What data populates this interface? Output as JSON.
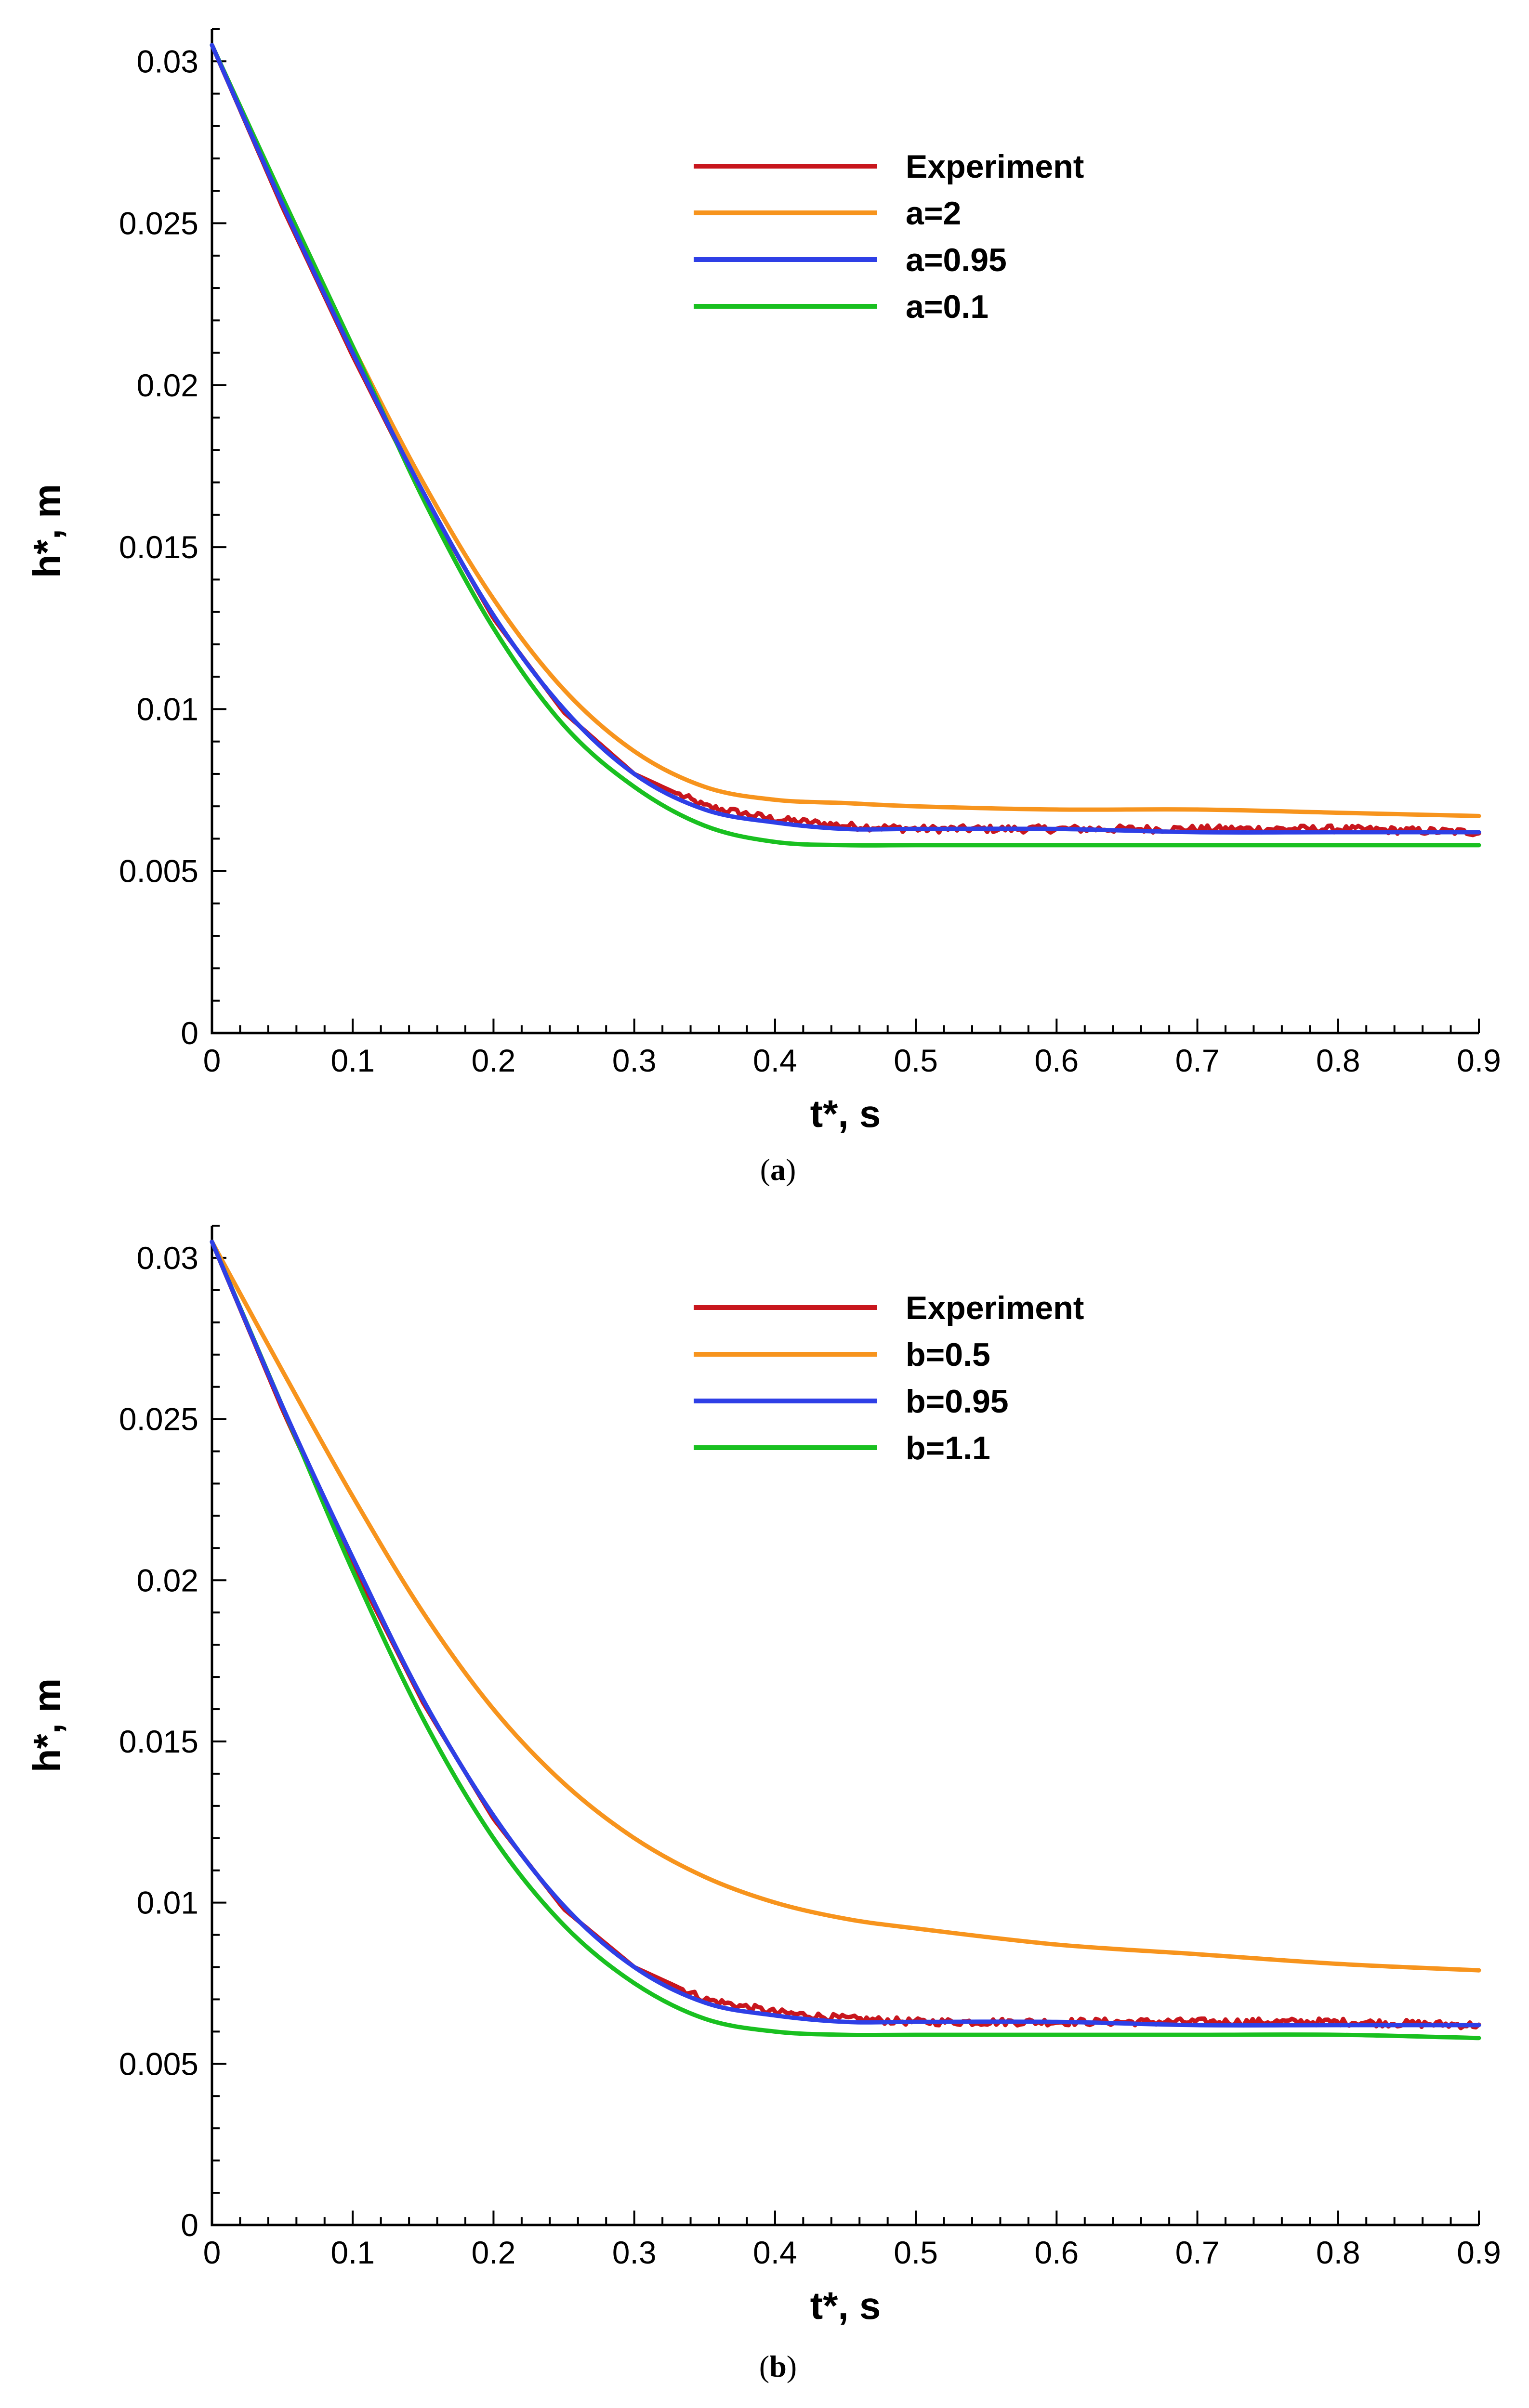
{
  "chart_data": [
    {
      "panel": "a",
      "caption_letter": "a",
      "type": "line",
      "xlabel": "t*, s",
      "ylabel": "h*, m",
      "xlim": [
        0,
        0.9
      ],
      "ylim": [
        0,
        0.031
      ],
      "xticks": [
        0,
        0.1,
        0.2,
        0.3,
        0.4,
        0.5,
        0.6,
        0.7,
        0.8,
        0.9
      ],
      "xtick_labels": [
        "0",
        "0.1",
        "0.2",
        "0.3",
        "0.4",
        "0.5",
        "0.6",
        "0.7",
        "0.8",
        "0.9"
      ],
      "yticks": [
        0,
        0.005,
        0.01,
        0.015,
        0.02,
        0.025,
        0.03
      ],
      "ytick_labels": [
        "0",
        "0.005",
        "0.01",
        "0.015",
        "0.02",
        "0.025",
        "0.03"
      ],
      "legend_position": "top-center",
      "series": [
        {
          "name": "Experiment",
          "color": "#c8161d",
          "noisy": true,
          "x": [
            0,
            0.05,
            0.1,
            0.15,
            0.2,
            0.25,
            0.3,
            0.35,
            0.4,
            0.45,
            0.5,
            0.6,
            0.7,
            0.8,
            0.9
          ],
          "y": [
            0.0305,
            0.0255,
            0.0209,
            0.0166,
            0.0128,
            0.0099,
            0.008,
            0.007,
            0.0066,
            0.0064,
            0.0063,
            0.0063,
            0.0063,
            0.0063,
            0.0062
          ]
        },
        {
          "name": "a=2",
          "color": "#f7941d",
          "x": [
            0,
            0.05,
            0.1,
            0.15,
            0.2,
            0.25,
            0.3,
            0.35,
            0.4,
            0.45,
            0.5,
            0.6,
            0.7,
            0.8,
            0.9
          ],
          "y": [
            0.0305,
            0.0257,
            0.0212,
            0.017,
            0.0134,
            0.0106,
            0.0087,
            0.0076,
            0.0072,
            0.0071,
            0.007,
            0.0069,
            0.0069,
            0.0068,
            0.0067
          ]
        },
        {
          "name": "a=0.95",
          "color": "#2e3fe6",
          "x": [
            0,
            0.05,
            0.1,
            0.15,
            0.2,
            0.25,
            0.3,
            0.35,
            0.4,
            0.45,
            0.5,
            0.6,
            0.7,
            0.8,
            0.9
          ],
          "y": [
            0.0305,
            0.0256,
            0.021,
            0.0167,
            0.0129,
            0.01,
            0.008,
            0.0069,
            0.0065,
            0.0063,
            0.0063,
            0.0063,
            0.0062,
            0.0062,
            0.0062
          ]
        },
        {
          "name": "a=0.1",
          "color": "#19c020",
          "x": [
            0,
            0.05,
            0.1,
            0.15,
            0.2,
            0.25,
            0.3,
            0.35,
            0.4,
            0.45,
            0.5,
            0.6,
            0.7,
            0.8,
            0.9
          ],
          "y": [
            0.0305,
            0.0258,
            0.0212,
            0.0165,
            0.0125,
            0.0095,
            0.0076,
            0.0064,
            0.0059,
            0.0058,
            0.0058,
            0.0058,
            0.0058,
            0.0058,
            0.0058
          ]
        }
      ]
    },
    {
      "panel": "b",
      "caption_letter": "b",
      "type": "line",
      "xlabel": "t*, s",
      "ylabel": "h*, m",
      "xlim": [
        0,
        0.9
      ],
      "ylim": [
        0,
        0.031
      ],
      "xticks": [
        0,
        0.1,
        0.2,
        0.3,
        0.4,
        0.5,
        0.6,
        0.7,
        0.8,
        0.9
      ],
      "xtick_labels": [
        "0",
        "0.1",
        "0.2",
        "0.3",
        "0.4",
        "0.5",
        "0.6",
        "0.7",
        "0.8",
        "0.9"
      ],
      "yticks": [
        0,
        0.005,
        0.01,
        0.015,
        0.02,
        0.025,
        0.03
      ],
      "ytick_labels": [
        "0",
        "0.005",
        "0.01",
        "0.015",
        "0.02",
        "0.025",
        "0.03"
      ],
      "legend_position": "top-center",
      "series": [
        {
          "name": "Experiment",
          "color": "#c8161d",
          "noisy": true,
          "x": [
            0,
            0.05,
            0.1,
            0.15,
            0.2,
            0.25,
            0.3,
            0.35,
            0.4,
            0.45,
            0.5,
            0.6,
            0.7,
            0.8,
            0.9
          ],
          "y": [
            0.0305,
            0.0253,
            0.0205,
            0.0162,
            0.0126,
            0.0098,
            0.008,
            0.007,
            0.0066,
            0.0064,
            0.0063,
            0.0063,
            0.0063,
            0.0063,
            0.0062
          ]
        },
        {
          "name": "b=0.5",
          "color": "#f7941d",
          "x": [
            0,
            0.05,
            0.1,
            0.15,
            0.2,
            0.25,
            0.3,
            0.35,
            0.4,
            0.45,
            0.5,
            0.6,
            0.7,
            0.8,
            0.9
          ],
          "y": [
            0.0305,
            0.0265,
            0.0226,
            0.019,
            0.016,
            0.0137,
            0.012,
            0.0108,
            0.01,
            0.0095,
            0.0092,
            0.0087,
            0.0084,
            0.0081,
            0.0079
          ]
        },
        {
          "name": "b=0.95",
          "color": "#2e3fe6",
          "x": [
            0,
            0.05,
            0.1,
            0.15,
            0.2,
            0.25,
            0.3,
            0.35,
            0.4,
            0.45,
            0.5,
            0.6,
            0.7,
            0.8,
            0.9
          ],
          "y": [
            0.0305,
            0.0254,
            0.0207,
            0.0163,
            0.0127,
            0.0099,
            0.008,
            0.0069,
            0.0065,
            0.0063,
            0.0063,
            0.0063,
            0.0062,
            0.0062,
            0.0062
          ]
        },
        {
          "name": "b=1.1",
          "color": "#19c020",
          "x": [
            0,
            0.05,
            0.1,
            0.15,
            0.2,
            0.25,
            0.3,
            0.35,
            0.4,
            0.45,
            0.5,
            0.6,
            0.7,
            0.8,
            0.9
          ],
          "y": [
            0.0305,
            0.0254,
            0.0203,
            0.0157,
            0.012,
            0.0093,
            0.0075,
            0.0064,
            0.006,
            0.0059,
            0.0059,
            0.0059,
            0.0059,
            0.0059,
            0.0058
          ]
        }
      ]
    }
  ]
}
